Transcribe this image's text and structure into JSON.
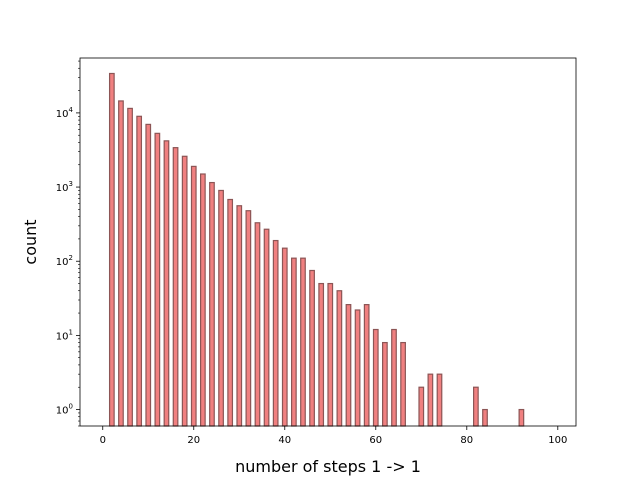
{
  "chart_data": {
    "type": "bar",
    "title": "",
    "xlabel": "number of steps 1 -> 1",
    "ylabel": "count",
    "y_scale": "log",
    "xlim": [
      -5,
      104
    ],
    "ylim": [
      0.6,
      55000
    ],
    "grid": false,
    "legend": "none",
    "bar_color": "#f08080",
    "bar_edge_color": "#8c5555",
    "x_ticks": [
      0,
      20,
      40,
      60,
      80,
      100
    ],
    "x_tick_labels": [
      "0",
      "20",
      "40",
      "60",
      "80",
      "100"
    ],
    "y_ticks": [
      1,
      10,
      100,
      1000,
      10000
    ],
    "y_tick_base": "10",
    "y_tick_exponents": [
      "0",
      "1",
      "2",
      "3",
      "4"
    ],
    "bars": [
      {
        "x": 2,
        "count": 34000
      },
      {
        "x": 4,
        "count": 14500
      },
      {
        "x": 6,
        "count": 11500
      },
      {
        "x": 8,
        "count": 9000
      },
      {
        "x": 10,
        "count": 7000
      },
      {
        "x": 12,
        "count": 5300
      },
      {
        "x": 14,
        "count": 4200
      },
      {
        "x": 16,
        "count": 3400
      },
      {
        "x": 18,
        "count": 2600
      },
      {
        "x": 20,
        "count": 1900
      },
      {
        "x": 22,
        "count": 1500
      },
      {
        "x": 24,
        "count": 1150
      },
      {
        "x": 26,
        "count": 900
      },
      {
        "x": 28,
        "count": 680
      },
      {
        "x": 30,
        "count": 560
      },
      {
        "x": 32,
        "count": 480
      },
      {
        "x": 34,
        "count": 330
      },
      {
        "x": 36,
        "count": 270
      },
      {
        "x": 38,
        "count": 190
      },
      {
        "x": 40,
        "count": 150
      },
      {
        "x": 42,
        "count": 110
      },
      {
        "x": 44,
        "count": 110
      },
      {
        "x": 46,
        "count": 75
      },
      {
        "x": 48,
        "count": 50
      },
      {
        "x": 50,
        "count": 50
      },
      {
        "x": 52,
        "count": 40
      },
      {
        "x": 54,
        "count": 26
      },
      {
        "x": 56,
        "count": 22
      },
      {
        "x": 58,
        "count": 26
      },
      {
        "x": 60,
        "count": 12
      },
      {
        "x": 62,
        "count": 8
      },
      {
        "x": 64,
        "count": 12
      },
      {
        "x": 66,
        "count": 8
      },
      {
        "x": 70,
        "count": 2
      },
      {
        "x": 72,
        "count": 3
      },
      {
        "x": 74,
        "count": 3
      },
      {
        "x": 82,
        "count": 2
      },
      {
        "x": 84,
        "count": 1
      },
      {
        "x": 92,
        "count": 1
      }
    ]
  }
}
